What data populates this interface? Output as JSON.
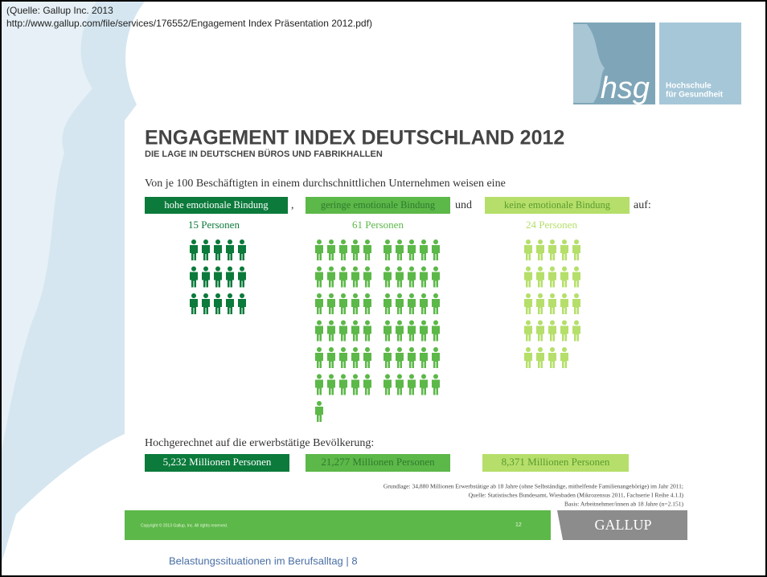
{
  "source": {
    "line1": "(Quelle: Gallup Inc. 2013",
    "line2": "http://www.gallup.com/file/services/176552/Engagement Index Präsentation 2012.pdf)"
  },
  "logo": {
    "mark": "hsg",
    "name_line1": "Hochschule",
    "name_line2": "für Gesundheit"
  },
  "slide": {
    "title": "ENGAGEMENT INDEX DEUTSCHLAND 2012",
    "subtitle": "DIE LAGE IN DEUTSCHEN BÜROS UND FABRIKHALLEN",
    "intro": "Von je 100 Beschäftigten in einem durchschnittlichen Unternehmen weisen eine",
    "separator1": ",",
    "separator2": "und",
    "ending": "auf:",
    "groups": [
      {
        "category": "hohe emotionale Bindung",
        "label": "15 Personen",
        "count": 15,
        "projection": "5,232 Millionen Personen",
        "color": "#0b7a3b"
      },
      {
        "category": "geringe emotionale Bindung",
        "label": "61 Personen",
        "count": 61,
        "projection": "21,277 Millionen Personen",
        "color": "#5cb848"
      },
      {
        "category": "keine emotionale Bindung",
        "label": "24 Personen",
        "count": 24,
        "projection": "8,371 Millionen Personen",
        "color": "#b5df6a"
      }
    ],
    "projection_heading": "Hochgerechnet auf die erwerbstätige Bevölkerung:",
    "footnotes": [
      "Grundlage: 34,880 Millionen Erwerbstätige ab 18 Jahre (ohne Selbständige, mithelfende Familienangehörige) im Jahr 2011;",
      "Quelle: Statistisches Bundesamt, Wiesbaden (Mikrozensus 2011, Fachserie I Reihe 4.1.I)",
      "Basis: Arbeitnehmer/innen ab 18 Jahre (n=2.151)"
    ],
    "copyright": "Copyright © 2013 Gallup, Inc. All rights reserved.",
    "page": "12",
    "brand": "GALLUP"
  },
  "caption": "Belastungssituationen im Berufsalltag | 8"
}
